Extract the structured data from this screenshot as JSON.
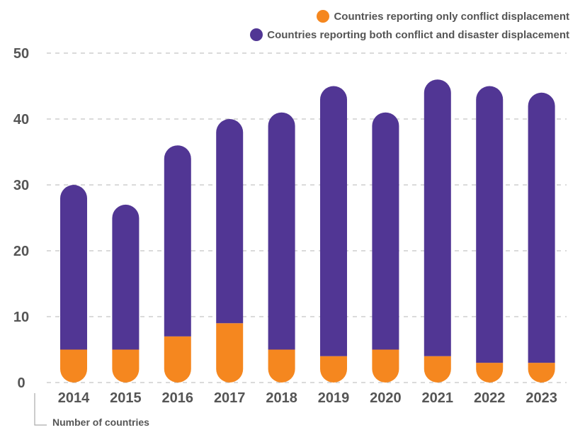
{
  "chart_data": {
    "type": "bar",
    "stacked": true,
    "categories": [
      "2014",
      "2015",
      "2016",
      "2017",
      "2018",
      "2019",
      "2020",
      "2021",
      "2022",
      "2023"
    ],
    "series": [
      {
        "name": "Countries reporting only conflict displacement",
        "color": "#f5871f",
        "values": [
          5,
          5,
          7,
          9,
          5,
          4,
          5,
          4,
          3,
          3
        ]
      },
      {
        "name": "Countries reporting both conflict and disaster displacement",
        "color": "#513694",
        "values": [
          25,
          22,
          29,
          31,
          36,
          41,
          36,
          42,
          42,
          41
        ]
      }
    ],
    "yticks": [
      0,
      10,
      20,
      30,
      40,
      50
    ],
    "ylim": [
      0,
      50
    ],
    "ylabel": "Number of countries",
    "grid": true,
    "legend_position": "top-right"
  }
}
